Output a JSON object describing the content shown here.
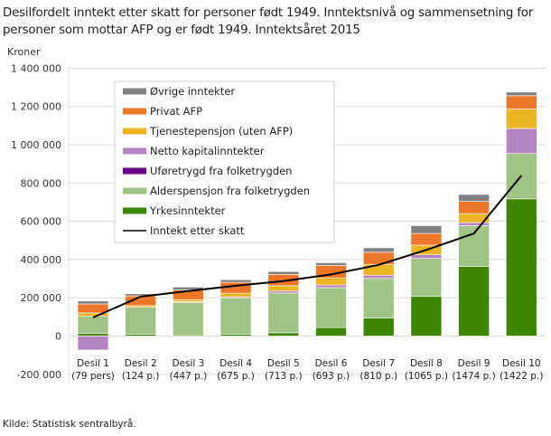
{
  "chart_data": {
    "type": "bar",
    "stacked": true,
    "title": "Desilfordelt inntekt etter skatt for personer født 1949. Inntektsnivå og sammensetning for personer som mottar AFP og er født 1949. Inntektsåret 2015",
    "ylabel": "Kroner",
    "ylim": [
      -200000,
      1400000
    ],
    "yticks": [
      -200000,
      0,
      200000,
      400000,
      600000,
      800000,
      1000000,
      1200000,
      1400000
    ],
    "ytick_labels": [
      "-200 000",
      "0",
      "200 000",
      "400 000",
      "600 000",
      "800 000",
      "1 000 000",
      "1 200 000",
      "1 400 000"
    ],
    "grid": true,
    "legend_placement": "top-left",
    "categories": [
      "Desil 1",
      "Desil 2",
      "Desil 3",
      "Desil 4",
      "Desil 5",
      "Desil 6",
      "Desil 7",
      "Desil 8",
      "Desil 9",
      "Desil 10"
    ],
    "category_sublabels": [
      "(79 pers)",
      "(124 p.)",
      "(447 p.)",
      "(675 p.)",
      "(713 p.)",
      "(693 p.)",
      "(810 p.)",
      "(1065 p.)",
      "(1474 p.)",
      "(1422 p.)"
    ],
    "series": [
      {
        "name": "Yrkesinntekter",
        "color": "#3f8600",
        "values": [
          13000,
          10000,
          6000,
          10000,
          17000,
          44000,
          94000,
          207000,
          364000,
          717000
        ]
      },
      {
        "name": "Alderspensjon fra folketrygden",
        "color": "#9fc485",
        "values": [
          90000,
          141000,
          169000,
          190000,
          208000,
          209000,
          207000,
          199000,
          213000,
          237000
        ]
      },
      {
        "name": "Uføretrygd fra folketrygden",
        "color": "#6a008a",
        "values": [
          0,
          0,
          0,
          0,
          0,
          0,
          0,
          0,
          0,
          0
        ]
      },
      {
        "name": "Netto kapitalinntekter",
        "color": "#b784c3",
        "values": [
          -73000,
          0,
          4000,
          5000,
          10000,
          14000,
          17000,
          19000,
          16000,
          131000
        ]
      },
      {
        "name": "Tjenestepensjon (uten AFP)",
        "color": "#edb421",
        "values": [
          18000,
          8000,
          11000,
          19000,
          28000,
          37000,
          57000,
          50000,
          47000,
          102000
        ]
      },
      {
        "name": "Privat AFP",
        "color": "#ec7728",
        "values": [
          47000,
          51000,
          51000,
          57000,
          59000,
          65000,
          63000,
          61000,
          64000,
          69000
        ]
      },
      {
        "name": "Øvrige inntekter",
        "color": "#808080",
        "values": [
          15000,
          11000,
          15000,
          13000,
          15000,
          14000,
          23000,
          41000,
          36000,
          19000
        ]
      }
    ],
    "line": {
      "name": "Inntekt etter skatt",
      "color": "#000000",
      "values": [
        97000,
        206000,
        235000,
        263000,
        287000,
        322000,
        372000,
        450000,
        536000,
        839000
      ]
    },
    "legend_order": [
      "Øvrige inntekter",
      "Privat AFP",
      "Tjenestepensjon (uten AFP)",
      "Netto kapitalinntekter",
      "Uføretrygd fra folketrygden",
      "Alderspensjon fra folketrygden",
      "Yrkesinntekter",
      "Inntekt etter skatt"
    ]
  },
  "source": "Kilde: Statistisk sentralbyrå."
}
